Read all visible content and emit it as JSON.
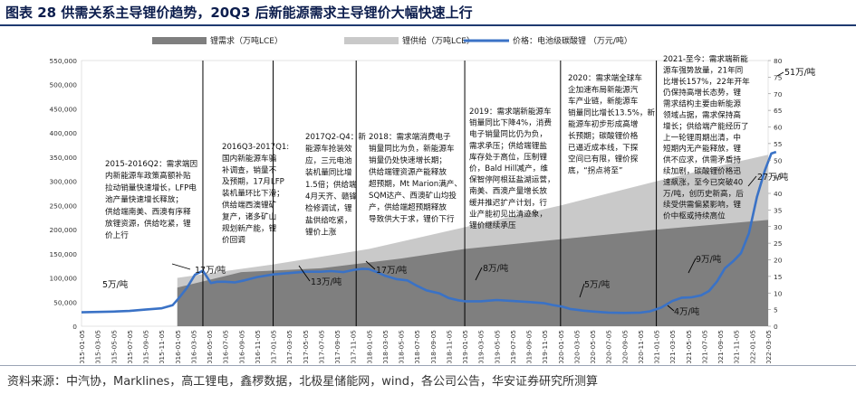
{
  "title": "图表 28 供需关系主导锂价趋势，20Q3 后新能源需求主导锂价大幅快速上行",
  "source": "资料来源：中汽协，Marklines，高工锂电，鑫椤数据，北极星储能网，wind，各公司公告，华安证券研究所测算",
  "colors": {
    "price": "#3a72c6",
    "demand": "#7f7f7f",
    "supply": "#c9c9c9",
    "title": "#0c1d4d"
  },
  "chart_data": {
    "type": "area+line",
    "title": "",
    "x_labels": [
      "2015-01-05",
      "2015-03-05",
      "2015-05-05",
      "2015-07-05",
      "2015-09-05",
      "2015-11-05",
      "2016-01-05",
      "2016-03-05",
      "2016-05-05",
      "2016-07-05",
      "2016-09-05",
      "2016-11-05",
      "2017-01-05",
      "2017-03-05",
      "2017-05-05",
      "2017-07-05",
      "2017-09-05",
      "2017-11-05",
      "2018-01-05",
      "2018-03-05",
      "2018-05-05",
      "2018-07-05",
      "2018-09-05",
      "2018-11-05",
      "2019-01-05",
      "2019-03-05",
      "2019-05-05",
      "2019-07-05",
      "2019-09-05",
      "2019-11-05",
      "2020-01-05",
      "2020-03-05",
      "2020-05-05",
      "2020-07-05",
      "2020-09-05",
      "2020-11-05",
      "2021-01-05",
      "2021-03-05",
      "2021-05-05",
      "2021-07-05",
      "2021-09-05",
      "2021-11-05",
      "2022-01-05",
      "2022-03-05"
    ],
    "left_axis": {
      "label": "万吨LCE",
      "min": 0,
      "max": 550000,
      "step": 50000,
      "ticks": [
        "0",
        "50,000",
        "100,000",
        "150,000",
        "200,000",
        "250,000",
        "300,000",
        "350,000",
        "400,000",
        "450,000",
        "500,000",
        "550,000"
      ]
    },
    "right_axis": {
      "label": "万元/吨",
      "min": 0,
      "max": 80,
      "step": 5,
      "ticks": [
        "0",
        "5",
        "10",
        "15",
        "20",
        "25",
        "30",
        "35",
        "40",
        "45",
        "50",
        "55",
        "60",
        "65",
        "70",
        "75",
        "80"
      ]
    },
    "series": [
      {
        "name": "锂需求（万吨LCE）",
        "kind": "area",
        "axis": "left",
        "points": [
          [
            6,
            80000
          ],
          [
            10,
            112000
          ],
          [
            15,
            120000
          ],
          [
            20,
            140000
          ],
          [
            24,
            160000
          ],
          [
            30,
            180000
          ],
          [
            36,
            200000
          ],
          [
            43,
            220000
          ]
        ]
      },
      {
        "name": "锂供给（万吨LCE）",
        "kind": "area",
        "axis": "left",
        "points": [
          [
            6,
            100000
          ],
          [
            12,
            128000
          ],
          [
            18,
            160000
          ],
          [
            24,
            205000
          ],
          [
            30,
            250000
          ],
          [
            36,
            300000
          ],
          [
            41,
            340000
          ],
          [
            43,
            355000
          ]
        ]
      },
      {
        "name": "价格：电池级碳酸锂 （万元/吨）",
        "kind": "line",
        "axis": "right",
        "points": [
          [
            0,
            4.2
          ],
          [
            2,
            4.4
          ],
          [
            3,
            4.6
          ],
          [
            4,
            5.0
          ],
          [
            5,
            5.4
          ],
          [
            5.7,
            6.3
          ],
          [
            6.1,
            8.5
          ],
          [
            6.6,
            11.5
          ],
          [
            7.1,
            15.5
          ],
          [
            7.6,
            16.7
          ],
          [
            8.1,
            13.0
          ],
          [
            8.5,
            13.4
          ],
          [
            9.0,
            13.4
          ],
          [
            9.6,
            13.2
          ],
          [
            10.2,
            13.8
          ],
          [
            11,
            14.8
          ],
          [
            12,
            15.6
          ],
          [
            13,
            16.0
          ],
          [
            14,
            16.4
          ],
          [
            15,
            16.4
          ],
          [
            15.6,
            16.6
          ],
          [
            16.4,
            16.3
          ],
          [
            17.1,
            17.0
          ],
          [
            17.6,
            17.3
          ],
          [
            18,
            17.2
          ],
          [
            18.5,
            16.3
          ],
          [
            19,
            15.2
          ],
          [
            19.7,
            14.2
          ],
          [
            20.4,
            13.8
          ],
          [
            21.0,
            12.2
          ],
          [
            21.6,
            10.8
          ],
          [
            22.4,
            9.9
          ],
          [
            23,
            8.5
          ],
          [
            23.6,
            7.8
          ],
          [
            24,
            7.5
          ],
          [
            25,
            7.5
          ],
          [
            26,
            7.9
          ],
          [
            27,
            7.6
          ],
          [
            28,
            7.3
          ],
          [
            29,
            6.9
          ],
          [
            29.5,
            6.4
          ],
          [
            30.1,
            5.9
          ],
          [
            30.6,
            5.2
          ],
          [
            31.4,
            4.7
          ],
          [
            32.1,
            4.4
          ],
          [
            33.0,
            4.1
          ],
          [
            34.0,
            4.0
          ],
          [
            35.0,
            4.1
          ],
          [
            35.6,
            4.5
          ],
          [
            36.3,
            5.6
          ],
          [
            37.0,
            7.6
          ],
          [
            37.6,
            8.6
          ],
          [
            38.2,
            8.7
          ],
          [
            38.8,
            9.3
          ],
          [
            39.3,
            10.6
          ],
          [
            39.8,
            13.5
          ],
          [
            40.3,
            17.5
          ],
          [
            40.8,
            19.5
          ],
          [
            41.3,
            22.0
          ],
          [
            41.8,
            28.0
          ],
          [
            42.3,
            39.0
          ],
          [
            42.8,
            47.0
          ],
          [
            43.2,
            52.0
          ],
          [
            43.5,
            52.5
          ]
        ]
      }
    ],
    "legend": [
      "锂需求（万吨LCE）",
      "锂供给（万吨LCE）",
      "价格：电池级碳酸锂 （万元/吨）"
    ],
    "point_labels": [
      "5万/吨",
      "17万/吨",
      "13万/吨",
      "17万/吨",
      "8万/吨",
      "5万/吨",
      "4万/吨",
      "9万/吨",
      "27万/吨",
      "51万/吨"
    ],
    "annotations": [
      {
        "title": "2015-2016Q2：需求端因",
        "lines": [
          "内新能源车政策高额补贴",
          "拉动销量快速增长，LFP电",
          "池产量快速增长释放；",
          "供给端南美、西澳有序释",
          "放锂资源，供给吃紧，锂",
          "价上行"
        ]
      },
      {
        "title": "2016Q3-2017Q1:",
        "lines": [
          "国内新能源车骗",
          "补调查，销量不",
          "及预期，17月LFP",
          "装机量环比下滑；",
          "供给端西澳锂矿",
          "复产，诸多矿山",
          "规划新产能，锂",
          "价回调"
        ]
      },
      {
        "title": "2017Q2-Q4：新",
        "lines": [
          "能源车抢装效",
          "应，三元电池",
          "装机量同比增",
          "1.5倍；供给端",
          "4月天齐、赣锋",
          "检修调试，锂",
          "盐供给吃紧，",
          "锂价上涨"
        ]
      },
      {
        "title": "2018：需求端消费电子",
        "lines": [
          "销量同比为负，新能源车",
          "销量仍处快速增长期；",
          "供给端锂资源产能释放",
          "超预期，Mt Marion满产、",
          "SQM达产、西澳矿山均投",
          "产，供给端超预期释放",
          "导致供大于求，锂价下行"
        ]
      },
      {
        "title": "2019：需求端新能源车",
        "lines": [
          "销量同比下降4%，消费",
          "电子销量同比仍为负，",
          "需求承压；供给端锂盐",
          "库存处于高位，压制锂",
          "价，Bald Hill减产，维",
          "保智停阿根廷盐湖运营，",
          "南美、西澳产量增长放",
          "缓并推迟扩产计划，行",
          "业产能初见出清迹象，",
          "锂价继续承压"
        ]
      },
      {
        "title": "2020：需求端全球车",
        "lines": [
          "企加速布局新能源汽",
          "车产业链，新能源车",
          "销量同比增长13.5%，新",
          "能源车初步形成高增",
          "长预期；碳酸锂价格",
          "已逼近成本线，下探",
          "空间已有限，锂价探",
          "底，“拐点将至”"
        ]
      },
      {
        "title": "2021-至今：需求端新能",
        "lines": [
          "源车强势放量，21年同",
          "比增长157%，22年开年",
          "仍保持高增长态势，锂",
          "需求结构主要由新能源",
          "领域占据，需求保持高",
          "增长；供给端产能经历了",
          "上一轮锂周期出清，中",
          "短期内无产能释放，锂",
          "供不应求，供需矛盾持",
          "续加剧，碳酸锂价格迅",
          "速飙涨，至今已突破40",
          "万/吨，创历史新高，后",
          "续受供需偏紧影响，锂",
          "价中枢或持续高位"
        ]
      }
    ]
  }
}
